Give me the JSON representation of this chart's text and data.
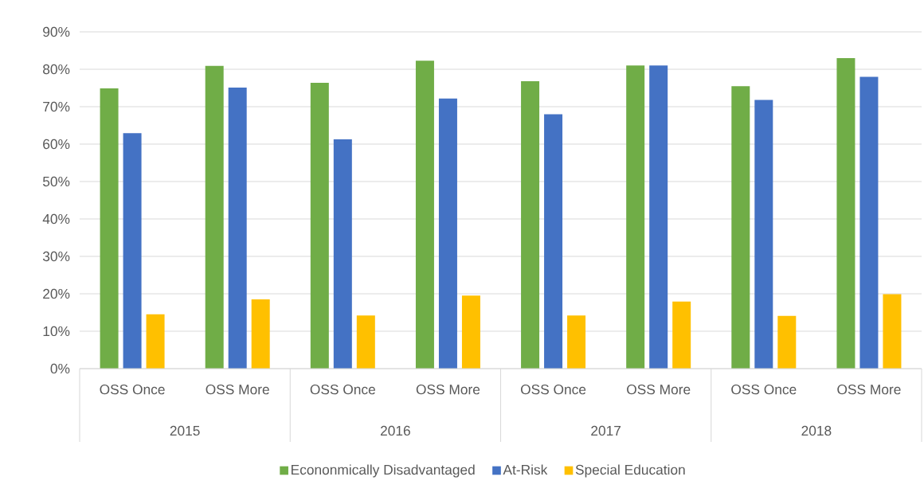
{
  "chart_data": {
    "type": "bar",
    "categories": [
      "OSS Once",
      "OSS More",
      "OSS Once",
      "OSS More",
      "OSS Once",
      "OSS More",
      "OSS Once",
      "OSS More"
    ],
    "series": [
      {
        "name": "Econonmically Disadvantaged",
        "color": "#70ad47",
        "values": [
          74.9,
          80.9,
          76.4,
          82.3,
          76.8,
          81.0,
          75.5,
          83.0
        ]
      },
      {
        "name": "At-Risk",
        "color": "#4472c4",
        "values": [
          62.9,
          75.1,
          61.3,
          72.2,
          68.0,
          81.0,
          71.8,
          78.0
        ]
      },
      {
        "name": "Special Education",
        "color": "#ffc000",
        "values": [
          14.5,
          18.5,
          14.2,
          19.5,
          14.2,
          17.9,
          14.1,
          19.9
        ]
      }
    ],
    "annotations": [
      "2015",
      "2016",
      "2017",
      "2018"
    ],
    "ylim": [
      0,
      90
    ],
    "yticks": [
      {
        "value": 0,
        "label": "0%"
      },
      {
        "value": 10,
        "label": "10%"
      },
      {
        "value": 20,
        "label": "20%"
      },
      {
        "value": 30,
        "label": "30%"
      },
      {
        "value": 40,
        "label": "40%"
      },
      {
        "value": 50,
        "label": "50%"
      },
      {
        "value": 60,
        "label": "60%"
      },
      {
        "value": 70,
        "label": "70%"
      },
      {
        "value": 80,
        "label": "80%"
      },
      {
        "value": 90,
        "label": "90%"
      }
    ],
    "grid": "y",
    "legend": "bottom"
  }
}
